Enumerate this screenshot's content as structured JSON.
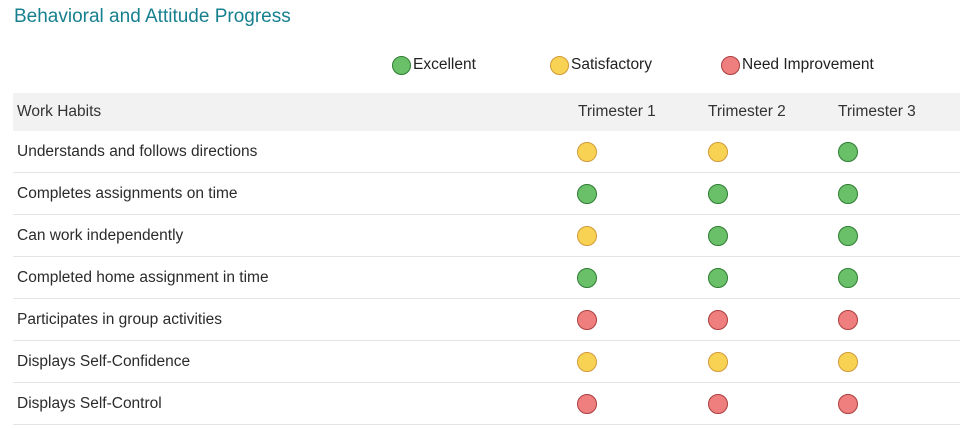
{
  "title": "Behavioral and Attitude Progress",
  "legend": [
    {
      "label": "Excellent",
      "rating": "excellent"
    },
    {
      "label": "Satisfactory",
      "rating": "satisfactory"
    },
    {
      "label": "Need Improvement",
      "rating": "need_improvement"
    }
  ],
  "table": {
    "header": {
      "habit_col": "Work Habits",
      "trimester_cols": [
        "Trimester 1",
        "Trimester 2",
        "Trimester 3"
      ]
    },
    "rows": [
      {
        "label": "Understands and follows directions",
        "ratings": [
          "satisfactory",
          "satisfactory",
          "excellent"
        ]
      },
      {
        "label": "Completes assignments on time",
        "ratings": [
          "excellent",
          "excellent",
          "excellent"
        ]
      },
      {
        "label": "Can work independently",
        "ratings": [
          "satisfactory",
          "excellent",
          "excellent"
        ]
      },
      {
        "label": "Completed home assignment in time",
        "ratings": [
          "excellent",
          "excellent",
          "excellent"
        ]
      },
      {
        "label": "Participates in group activities",
        "ratings": [
          "need_improvement",
          "need_improvement",
          "need_improvement"
        ]
      },
      {
        "label": "Displays Self-Confidence",
        "ratings": [
          "satisfactory",
          "satisfactory",
          "satisfactory"
        ]
      },
      {
        "label": "Displays Self-Control",
        "ratings": [
          "need_improvement",
          "need_improvement",
          "need_improvement"
        ]
      }
    ]
  },
  "colors": {
    "title_color": "#17808f",
    "header_bg": "#f2f2f2",
    "excellent_fill": "#6abf69",
    "excellent_border": "#2e7d32",
    "satisfactory_fill": "#f8d353",
    "satisfactory_border": "#d29a3a",
    "need_improvement_fill": "#ef7e7e",
    "need_improvement_border": "#ab3e3e"
  }
}
